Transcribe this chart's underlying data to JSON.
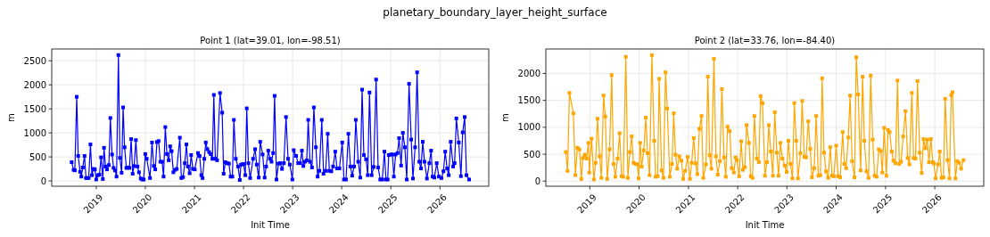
{
  "chart_data": [
    {
      "type": "line",
      "title": "Point 1 (lat=39.01, lon=-98.51)",
      "annotations": [
        "planetary_boundary_layer_height_surface"
      ],
      "xlabel": "Init Time",
      "ylabel": "m",
      "grid": true,
      "marker": "square",
      "xlim": [
        "2018-02-04",
        "2026-12-30"
      ],
      "ylim": [
        -110,
        2745
      ],
      "xticks": [
        {
          "value": "2019-01-01",
          "label": "2019"
        },
        {
          "value": "2020-01-01",
          "label": "2020"
        },
        {
          "value": "2021-01-01",
          "label": "2021"
        },
        {
          "value": "2022-01-01",
          "label": "2022"
        },
        {
          "value": "2023-01-01",
          "label": "2023"
        },
        {
          "value": "2024-01-01",
          "label": "2024"
        },
        {
          "value": "2025-01-01",
          "label": "2025"
        },
        {
          "value": "2026-01-01",
          "label": "2026"
        }
      ],
      "yticks": [
        0,
        500,
        1000,
        1500,
        2000,
        2500
      ],
      "x": [
        "2018-07-02",
        "2018-07-17",
        "2018-07-26",
        "2018-08-09",
        "2018-08-20",
        "2018-09-03",
        "2018-09-12",
        "2018-09-23",
        "2018-10-06",
        "2018-10-17",
        "2018-10-28",
        "2018-11-06",
        "2018-11-19",
        "2018-11-30",
        "2018-12-11",
        "2018-12-22",
        "2019-01-01",
        "2019-01-14",
        "2019-01-25",
        "2019-02-06",
        "2019-02-19",
        "2019-02-28",
        "2019-03-11",
        "2019-03-22",
        "2019-04-05",
        "2019-04-16",
        "2019-04-29",
        "2019-05-10",
        "2019-05-21",
        "2019-06-01",
        "2019-06-15",
        "2019-06-26",
        "2019-07-09",
        "2019-07-20",
        "2019-07-31",
        "2019-08-13",
        "2019-08-24",
        "2019-09-05",
        "2019-09-18",
        "2019-09-29",
        "2019-10-10",
        "2019-10-23",
        "2019-11-04",
        "2019-11-15",
        "2019-11-28",
        "2019-12-09",
        "2019-12-20",
        "2020-01-01",
        "2020-01-12",
        "2020-02-05",
        "2020-02-20",
        "2020-03-04",
        "2020-03-15",
        "2020-03-28",
        "2020-04-09",
        "2020-04-22",
        "2020-05-05",
        "2020-05-16",
        "2020-05-29",
        "2020-06-10",
        "2020-06-23",
        "2020-07-04",
        "2020-07-15",
        "2020-07-28",
        "2020-08-09",
        "2020-08-22",
        "2020-09-14",
        "2020-09-25",
        "2020-10-08",
        "2020-10-21",
        "2020-11-02",
        "2020-11-13",
        "2020-11-26",
        "2020-12-07",
        "2020-12-20",
        "2021-01-03",
        "2021-01-27",
        "2021-02-08",
        "2021-02-21",
        "2021-03-02",
        "2021-03-15",
        "2021-03-26",
        "2021-04-07",
        "2021-04-20",
        "2021-05-01",
        "2021-05-14",
        "2021-05-25",
        "2021-06-05",
        "2021-06-18",
        "2021-07-10",
        "2021-07-26",
        "2021-08-06",
        "2021-08-19",
        "2021-09-03",
        "2021-09-14",
        "2021-09-27",
        "2021-10-10",
        "2021-10-21",
        "2021-11-04",
        "2021-11-21",
        "2021-12-04",
        "2021-12-13",
        "2021-12-26",
        "2022-01-01",
        "2022-01-14",
        "2022-01-25",
        "2022-02-06",
        "2022-02-19",
        "2022-03-13",
        "2022-03-28",
        "2022-04-09",
        "2022-04-24",
        "2022-05-05",
        "2022-05-23",
        "2022-06-07",
        "2022-06-18",
        "2022-07-04",
        "2022-07-17",
        "2022-07-28",
        "2022-08-09",
        "2022-08-20",
        "2022-09-03",
        "2022-09-18",
        "2022-10-01",
        "2022-10-14",
        "2022-10-28",
        "2022-11-13",
        "2022-11-28",
        "2022-12-11",
        "2022-12-30",
        "2023-01-09",
        "2023-01-27",
        "2023-02-11",
        "2023-02-26",
        "2023-03-11",
        "2023-03-22",
        "2023-04-03",
        "2023-04-16",
        "2023-04-27",
        "2023-05-10",
        "2023-05-25",
        "2023-06-08",
        "2023-06-23",
        "2023-07-06",
        "2023-07-19",
        "2023-08-06",
        "2023-08-19",
        "2023-09-04",
        "2023-09-19",
        "2023-10-01",
        "2023-10-16",
        "2023-10-29",
        "2023-11-14",
        "2023-11-27",
        "2023-12-15",
        "2024-01-05",
        "2024-01-18",
        "2024-02-02",
        "2024-02-20",
        "2024-03-06",
        "2024-03-19",
        "2024-04-02",
        "2024-04-15",
        "2024-05-03",
        "2024-05-18",
        "2024-06-01",
        "2024-06-14",
        "2024-06-30",
        "2024-07-13",
        "2024-07-26",
        "2024-08-11",
        "2024-08-26",
        "2024-09-13",
        "2024-09-28",
        "2024-10-14",
        "2024-10-29",
        "2024-11-14",
        "2024-11-25",
        "2024-12-08",
        "2024-12-16",
        "2025-01-01",
        "2025-01-12",
        "2025-01-23",
        "2025-02-05",
        "2025-02-19",
        "2025-03-03",
        "2025-03-18",
        "2025-03-31",
        "2025-04-15",
        "2025-04-29",
        "2025-05-16",
        "2025-06-01",
        "2025-06-14",
        "2025-06-30",
        "2025-07-15",
        "2025-07-31",
        "2025-08-13",
        "2025-08-26",
        "2025-09-08",
        "2025-09-26",
        "2025-10-14",
        "2025-10-27",
        "2025-11-07",
        "2025-11-20",
        "2025-12-08",
        "2025-12-24",
        "2026-01-12",
        "2026-01-27",
        "2026-02-09",
        "2026-02-23",
        "2026-03-07",
        "2026-03-22",
        "2026-04-09",
        "2026-04-20",
        "2026-05-03",
        "2026-05-21",
        "2026-06-06",
        "2026-06-19",
        "2026-07-04",
        "2026-07-17",
        "2026-08-06"
      ],
      "series": [
        {
          "color": "#0000ff",
          "values": [
            390,
            230,
            220,
            1750,
            520,
            190,
            90,
            280,
            520,
            60,
            60,
            60,
            760,
            120,
            250,
            240,
            30,
            120,
            130,
            490,
            40,
            690,
            300,
            240,
            330,
            1310,
            550,
            270,
            220,
            90,
            2620,
            480,
            170,
            1530,
            700,
            270,
            280,
            270,
            870,
            150,
            310,
            850,
            300,
            180,
            50,
            30,
            30,
            560,
            460,
            60,
            800,
            310,
            240,
            810,
            830,
            400,
            400,
            90,
            1120,
            560,
            430,
            720,
            620,
            180,
            230,
            250,
            900,
            60,
            80,
            370,
            760,
            300,
            160,
            540,
            250,
            240,
            580,
            520,
            120,
            60,
            460,
            800,
            660,
            600,
            560,
            460,
            1790,
            460,
            430,
            1830,
            1420,
            150,
            390,
            370,
            360,
            90,
            90,
            1270,
            460,
            300,
            20,
            340,
            350,
            350,
            120,
            1510,
            370,
            60,
            460,
            660,
            340,
            70,
            815,
            550,
            70,
            300,
            630,
            460,
            400,
            580,
            1770,
            30,
            360,
            370,
            250,
            370,
            1330,
            460,
            340,
            30,
            640,
            520,
            370,
            370,
            630,
            310,
            400,
            430,
            1270,
            400,
            280,
            1530,
            700,
            90,
            210,
            1270,
            150,
            210,
            980,
            210,
            200,
            300,
            610,
            260,
            260,
            800,
            30,
            30,
            980,
            300,
            110,
            300,
            1270,
            400,
            70,
            1900,
            540,
            450,
            120,
            1840,
            120,
            290,
            2110,
            280,
            30,
            30,
            610,
            30,
            30,
            540,
            550,
            550,
            90,
            550,
            580,
            890,
            320,
            1000,
            700,
            30,
            2020,
            860,
            50,
            700,
            2260,
            400,
            260,
            815,
            400,
            50,
            370,
            630,
            90,
            70,
            370,
            90,
            60,
            200,
            610,
            260,
            120,
            815,
            300,
            370,
            1300,
            800,
            100,
            1010,
            1330,
            120,
            30
          ]
        }
      ]
    },
    {
      "type": "line",
      "title": "Point 2 (lat=33.76, lon=-84.40)",
      "xlabel": "Init Time",
      "ylabel": "m",
      "grid": true,
      "marker": "square",
      "xlim": [
        "2018-02-09",
        "2026-12-30"
      ],
      "ylim": [
        -95,
        2455
      ],
      "xticks": [
        {
          "value": "2019-01-01",
          "label": "2019"
        },
        {
          "value": "2020-01-01",
          "label": "2020"
        },
        {
          "value": "2021-01-01",
          "label": "2021"
        },
        {
          "value": "2022-01-01",
          "label": "2022"
        },
        {
          "value": "2023-01-01",
          "label": "2023"
        },
        {
          "value": "2024-01-01",
          "label": "2024"
        },
        {
          "value": "2025-01-01",
          "label": "2025"
        },
        {
          "value": "2026-01-01",
          "label": "2026"
        }
      ],
      "yticks": [
        0,
        500,
        1000,
        1500,
        2000
      ],
      "x": [
        "2018-07-07",
        "2018-07-20",
        "2018-08-03",
        "2018-09-01",
        "2018-09-16",
        "2018-10-01",
        "2018-10-16",
        "2018-10-30",
        "2018-11-10",
        "2018-11-24",
        "2018-12-07",
        "2018-12-22",
        "2018-12-28",
        "2019-01-14",
        "2019-01-31",
        "2019-02-13",
        "2019-02-27",
        "2019-03-15",
        "2019-03-28",
        "2019-04-13",
        "2019-04-26",
        "2019-05-10",
        "2019-05-28",
        "2019-06-12",
        "2019-06-26",
        "2019-07-09",
        "2019-07-26",
        "2019-08-10",
        "2019-08-24",
        "2019-09-06",
        "2019-09-25",
        "2019-10-10",
        "2019-10-25",
        "2019-11-08",
        "2019-11-21",
        "2019-12-07",
        "2019-12-20",
        "2019-12-28",
        "2020-01-09",
        "2020-01-20",
        "2020-02-05",
        "2020-02-20",
        "2020-03-04",
        "2020-03-19",
        "2020-04-05",
        "2020-04-22",
        "2020-05-03",
        "2020-05-18",
        "2020-05-29",
        "2020-06-16",
        "2020-06-30",
        "2020-07-15",
        "2020-07-28",
        "2020-08-16",
        "2020-09-01",
        "2020-09-14",
        "2020-09-27",
        "2020-10-10",
        "2020-10-25",
        "2020-11-10",
        "2020-11-23",
        "2020-12-08",
        "2020-12-26",
        "2021-01-12",
        "2021-01-25",
        "2021-02-09",
        "2021-02-23",
        "2021-03-08",
        "2021-03-23",
        "2021-04-08",
        "2021-04-21",
        "2021-05-11",
        "2021-05-25",
        "2021-06-07",
        "2021-06-20",
        "2021-07-09",
        "2021-07-24",
        "2021-08-06",
        "2021-08-22",
        "2021-09-06",
        "2021-09-22",
        "2021-10-05",
        "2021-10-18",
        "2021-11-03",
        "2021-11-18",
        "2021-12-04",
        "2021-12-17",
        "2021-12-26",
        "2022-01-12",
        "2022-01-27",
        "2022-02-09",
        "2022-02-23",
        "2022-03-08",
        "2022-03-26",
        "2022-04-08",
        "2022-04-21",
        "2022-05-05",
        "2022-05-23",
        "2022-06-07",
        "2022-06-20",
        "2022-07-04",
        "2022-07-22",
        "2022-08-06",
        "2022-08-20",
        "2022-09-04",
        "2022-09-19",
        "2022-10-03",
        "2022-10-18",
        "2022-10-31",
        "2022-11-14",
        "2022-11-29",
        "2022-12-15",
        "2022-12-30",
        "2023-01-12",
        "2023-01-27",
        "2023-02-11",
        "2023-02-25",
        "2023-03-11",
        "2023-03-24",
        "2023-04-11",
        "2023-04-24",
        "2023-05-10",
        "2023-05-23",
        "2023-06-08",
        "2023-06-23",
        "2023-07-06",
        "2023-07-22",
        "2023-08-06",
        "2023-08-22",
        "2023-09-06",
        "2023-09-19",
        "2023-10-03",
        "2023-10-18",
        "2023-11-03",
        "2023-11-18",
        "2023-12-02",
        "2023-12-15",
        "2024-01-01",
        "2024-01-16",
        "2024-01-31",
        "2024-02-18",
        "2024-03-02",
        "2024-03-15",
        "2024-03-31",
        "2024-04-13",
        "2024-04-28",
        "2024-05-16",
        "2024-05-29",
        "2024-06-12",
        "2024-06-30",
        "2024-07-15",
        "2024-07-28",
        "2024-08-13",
        "2024-08-28",
        "2024-09-13",
        "2024-09-28",
        "2024-10-12",
        "2024-10-27",
        "2024-11-12",
        "2024-11-27",
        "2024-12-08",
        "2024-12-22",
        "2025-01-07",
        "2025-01-20",
        "2025-01-31",
        "2025-02-16",
        "2025-02-28",
        "2025-03-15",
        "2025-03-31",
        "2025-04-13",
        "2025-04-26",
        "2025-05-12",
        "2025-05-29",
        "2025-06-14",
        "2025-06-27",
        "2025-07-15",
        "2025-07-28",
        "2025-08-11",
        "2025-08-26",
        "2025-09-11",
        "2025-09-26",
        "2025-10-10",
        "2025-10-23",
        "2025-11-06",
        "2025-11-19",
        "2025-12-03",
        "2025-12-18",
        "2025-12-25",
        "2026-01-07",
        "2026-01-25",
        "2026-02-07",
        "2026-02-20",
        "2026-03-06",
        "2026-03-19",
        "2026-04-06",
        "2026-04-20",
        "2026-05-03",
        "2026-05-12",
        "2026-06-03",
        "2026-06-17",
        "2026-06-30",
        "2026-07-15",
        "2026-08-02"
      ],
      "series": [
        {
          "color": "#ffa500",
          "values": [
            540,
            190,
            1640,
            1260,
            110,
            620,
            590,
            40,
            430,
            490,
            420,
            710,
            160,
            790,
            30,
            340,
            1160,
            460,
            60,
            1590,
            1200,
            40,
            590,
            1970,
            320,
            80,
            420,
            890,
            90,
            80,
            2310,
            60,
            540,
            830,
            340,
            320,
            310,
            50,
            710,
            270,
            570,
            1180,
            520,
            110,
            2340,
            750,
            80,
            90,
            1900,
            200,
            60,
            2020,
            1350,
            80,
            320,
            1260,
            490,
            230,
            460,
            380,
            40,
            190,
            450,
            40,
            340,
            800,
            330,
            130,
            970,
            1210,
            60,
            310,
            1940,
            480,
            230,
            2270,
            460,
            120,
            370,
            1710,
            440,
            80,
            1010,
            930,
            240,
            160,
            440,
            390,
            90,
            740,
            210,
            260,
            1040,
            710,
            90,
            60,
            1210,
            420,
            350,
            1580,
            1450,
            100,
            350,
            1040,
            550,
            100,
            1280,
            530,
            100,
            710,
            420,
            290,
            170,
            750,
            320,
            50,
            1450,
            750,
            50,
            520,
            1490,
            450,
            440,
            1110,
            600,
            70,
            240,
            1210,
            100,
            110,
            1910,
            530,
            180,
            60,
            630,
            100,
            90,
            660,
            90,
            70,
            910,
            320,
            240,
            810,
            1590,
            370,
            70,
            2300,
            1610,
            200,
            1940,
            750,
            180,
            60,
            1960,
            770,
            100,
            80,
            590,
            560,
            160,
            990,
            100,
            950,
            910,
            550,
            380,
            330,
            1870,
            320,
            360,
            830,
            1300,
            430,
            310,
            1640,
            430,
            420,
            1860,
            530,
            150,
            780,
            610,
            770,
            350,
            780,
            350,
            330,
            50,
            310,
            550,
            60,
            70,
            1530,
            390,
            50,
            1600,
            1650,
            50,
            370,
            340,
            230,
            390
          ]
        }
      ]
    }
  ]
}
